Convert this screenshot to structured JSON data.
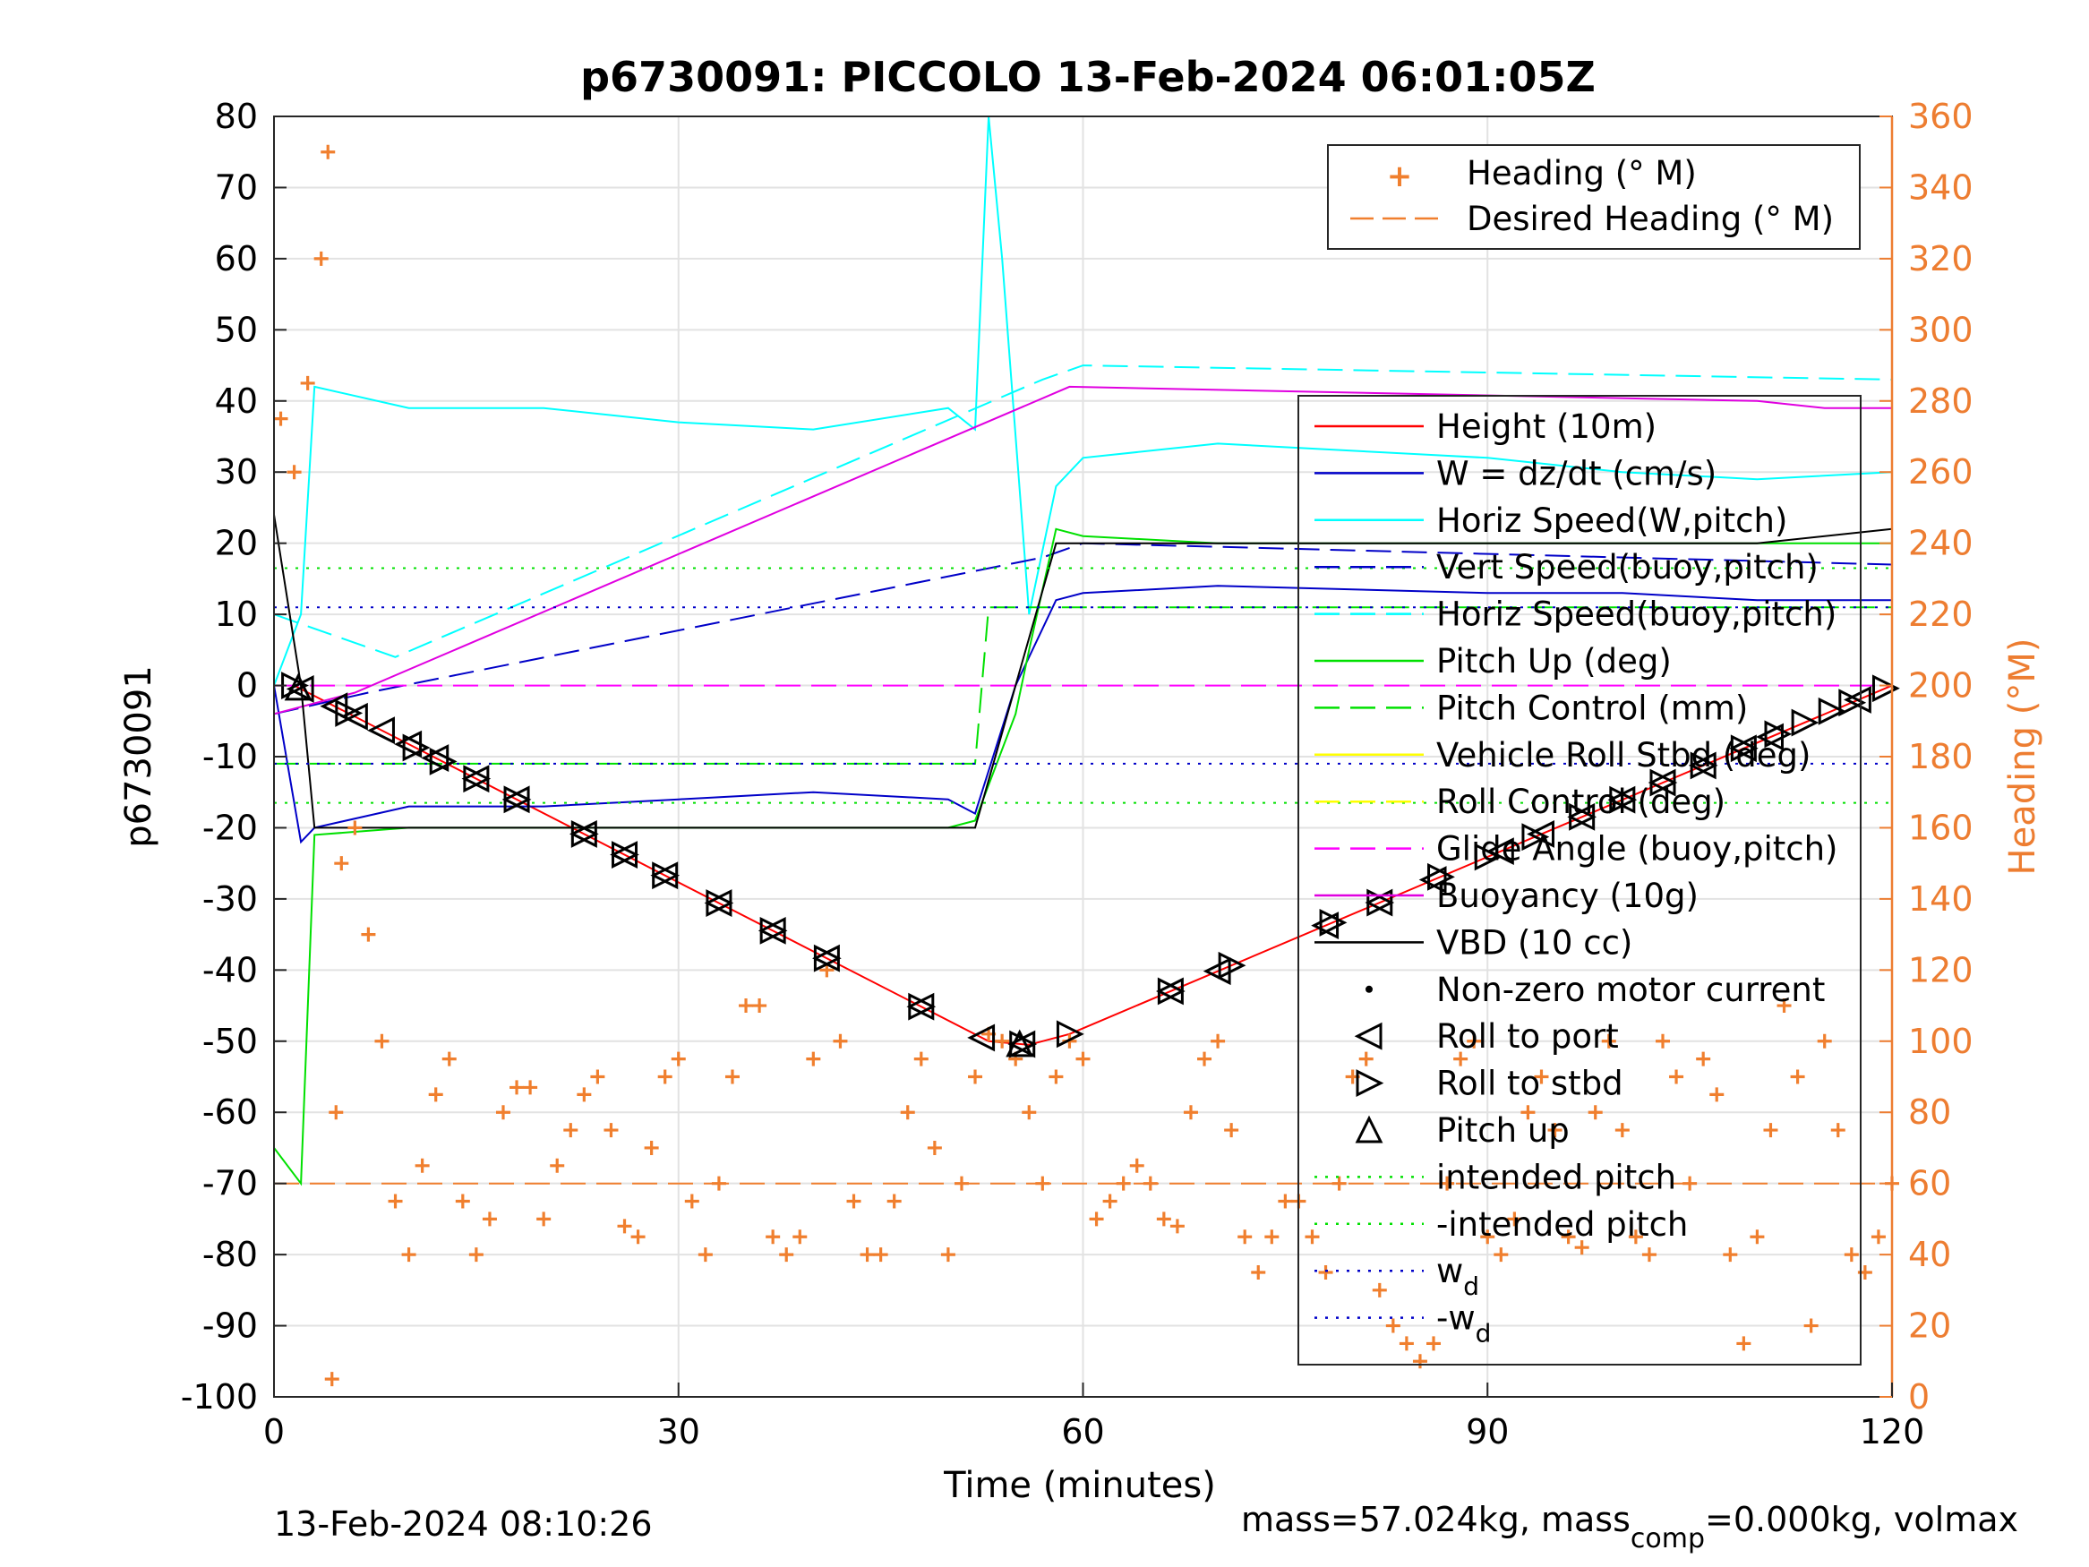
{
  "chart_data": {
    "type": "line",
    "title": "p6730091: PICCOLO 13-Feb-2024 06:01:05Z",
    "xlabel": "Time (minutes)",
    "ylabel_left": "p6730091",
    "ylabel_right": "Heading (°M)",
    "xlim": [
      0,
      120
    ],
    "ylim_left": [
      -100,
      80
    ],
    "ylim_right": [
      0,
      360
    ],
    "grid": true,
    "x_ticks": [
      "0",
      "30",
      "60",
      "90",
      "120"
    ],
    "x_tick_values": [
      0,
      30,
      60,
      90,
      120
    ],
    "y_ticks_left": [
      "80",
      "70",
      "60",
      "50",
      "40",
      "30",
      "20",
      "10",
      "0",
      "-10",
      "-20",
      "-30",
      "-40",
      "-50",
      "-60",
      "-70",
      "-80",
      "-90",
      "-100"
    ],
    "y_tick_values_left": [
      80,
      70,
      60,
      50,
      40,
      30,
      20,
      10,
      0,
      -10,
      -20,
      -30,
      -40,
      -50,
      -60,
      -70,
      -80,
      -90,
      -100
    ],
    "y_ticks_right": [
      "360",
      "340",
      "320",
      "300",
      "280",
      "260",
      "240",
      "220",
      "200",
      "180",
      "160",
      "140",
      "120",
      "100",
      "80",
      "60",
      "40",
      "20",
      "0"
    ],
    "y_tick_values_right": [
      360,
      340,
      320,
      300,
      280,
      260,
      240,
      220,
      200,
      180,
      160,
      140,
      120,
      100,
      80,
      60,
      40,
      20,
      0
    ],
    "colors": {
      "axis_right": "#ED7D31",
      "heading": "#F07F2E",
      "height": "#FF0000",
      "w": "#0000C8",
      "horiz_speed": "#00FFFF",
      "pitch": "#00E000",
      "roll": "#FFFF00",
      "glide": "#FF00FF",
      "buoyancy": "#E000E0",
      "vbd": "#000000",
      "grid": "#E2E2E2"
    },
    "legend_top_right": [
      "Heading (° M)",
      "Desired Heading (° M)"
    ],
    "legend_main": [
      "Height (10m)",
      "W = dz/dt (cm/s)",
      "Horiz Speed(W,pitch)",
      "Vert Speed(buoy,pitch)",
      "Horiz Speed(buoy,pitch)",
      "Pitch Up (deg)",
      "Pitch Control (mm)",
      "Vehicle Roll Stbd (deg)",
      "Roll Control (deg)",
      "Glide Angle (buoy,pitch)",
      "Buoyancy (10g)",
      "VBD (10 cc)",
      "Non-zero motor current",
      "Roll to port",
      "Roll to stbd",
      "Pitch up",
      "intended pitch",
      "-intended pitch",
      "w",
      "-w"
    ],
    "legend_subscripts": {
      "w": "d",
      "-w": "d"
    },
    "series": [
      {
        "name": "Height (10m)",
        "x": [
          1.5,
          53,
          56,
          59,
          120
        ],
        "y": [
          0,
          -50,
          -50.5,
          -49,
          0
        ]
      },
      {
        "name": "W = dz/dt (cm/s)",
        "x": [
          0,
          2,
          3,
          10,
          20,
          30,
          40,
          50,
          52,
          55,
          58,
          60,
          70,
          80,
          90,
          100,
          110,
          120
        ],
        "y": [
          0,
          -22,
          -20,
          -17,
          -17,
          -16,
          -15,
          -16,
          -18,
          0,
          12,
          13,
          14,
          13.5,
          13,
          13,
          12,
          12
        ]
      },
      {
        "name": "Horiz Speed(W,pitch)",
        "x": [
          0,
          2,
          3,
          10,
          20,
          30,
          40,
          50,
          52,
          53,
          54,
          56,
          58,
          60,
          70,
          80,
          90,
          100,
          110,
          120
        ],
        "y": [
          0,
          10,
          42,
          39,
          39,
          37,
          36,
          39,
          36,
          80,
          60,
          10,
          28,
          32,
          34,
          33,
          32,
          30,
          29,
          30
        ]
      },
      {
        "name": "Vert Speed(buoy,pitch)",
        "x": [
          0,
          7,
          57,
          60,
          120
        ],
        "y": [
          -4,
          -1,
          18,
          20,
          17
        ]
      },
      {
        "name": "Horiz Speed(buoy,pitch)",
        "x": [
          0,
          9,
          57,
          60,
          120
        ],
        "y": [
          10,
          4,
          43,
          45,
          43
        ]
      },
      {
        "name": "Pitch Up (deg)",
        "x": [
          0,
          2,
          3,
          10,
          20,
          30,
          40,
          50,
          52,
          55,
          56,
          58,
          60,
          70,
          80,
          90,
          100,
          110,
          120
        ],
        "y": [
          -65,
          -70,
          -21,
          -20,
          -20,
          -20,
          -20,
          -20,
          -19,
          -4,
          5,
          22,
          21,
          20,
          20,
          20,
          20,
          20,
          20
        ]
      },
      {
        "name": "Pitch Control (mm)",
        "x": [
          0,
          52,
          53,
          60,
          120
        ],
        "y": [
          -11,
          -11,
          11,
          11,
          11
        ]
      },
      {
        "name": "Glide Angle (buoy,pitch)",
        "x": [
          0,
          120
        ],
        "y": [
          0,
          0
        ]
      },
      {
        "name": "Buoyancy (10g)",
        "x": [
          0,
          6,
          59,
          110,
          115,
          120
        ],
        "y": [
          -4,
          -1,
          42,
          40,
          39,
          39
        ]
      },
      {
        "name": "VBD (10 cc)",
        "x": [
          0,
          2,
          3,
          5,
          52,
          58,
          59,
          110,
          120
        ],
        "y": [
          24,
          0,
          -20,
          -20,
          -20,
          20,
          20,
          20,
          22
        ]
      },
      {
        "name": "intended pitch",
        "x": [
          0,
          120
        ],
        "y": [
          16.5,
          16.5
        ]
      },
      {
        "name": "-intended pitch",
        "x": [
          0,
          120
        ],
        "y": [
          -16.5,
          -16.5
        ]
      },
      {
        "name": "w_d",
        "x": [
          0,
          120
        ],
        "y": [
          11,
          11
        ]
      },
      {
        "name": "-w_d",
        "x": [
          0,
          120
        ],
        "y": [
          -11,
          -11
        ]
      },
      {
        "name": "Desired Heading (° M)",
        "axis": "right",
        "x": [
          0,
          120
        ],
        "y": [
          60,
          60
        ]
      },
      {
        "name": "Heading (° M)",
        "axis": "right",
        "x": [
          0.5,
          1.5,
          2.5,
          3.5,
          4,
          4.3,
          4.6,
          5,
          6,
          7,
          8,
          9,
          10,
          11,
          12,
          13,
          14,
          15,
          16,
          17,
          18,
          19,
          20,
          21,
          22,
          23,
          24,
          25,
          26,
          27,
          28,
          29,
          30,
          31,
          32,
          33,
          34,
          35,
          36,
          37,
          38,
          39,
          40,
          41,
          42,
          43,
          44,
          45,
          46,
          47,
          48,
          49,
          50,
          51,
          52,
          53,
          54,
          55,
          56,
          57,
          58,
          59,
          60,
          61,
          62,
          63,
          64,
          65,
          66,
          67,
          68,
          69,
          70,
          71,
          72,
          73,
          74,
          75,
          76,
          77,
          78,
          79,
          80,
          81,
          82,
          83,
          84,
          85,
          86,
          87,
          88,
          89,
          90,
          91,
          92,
          93,
          94,
          95,
          96,
          97,
          98,
          99,
          100,
          101,
          102,
          103,
          104,
          105,
          106,
          107,
          108,
          109,
          110,
          111,
          112,
          113,
          114,
          115,
          116,
          117,
          118,
          119,
          120
        ],
        "y": [
          275,
          260,
          285,
          320,
          350,
          5,
          80,
          150,
          160,
          130,
          100,
          55,
          40,
          65,
          85,
          95,
          55,
          40,
          50,
          80,
          87,
          87,
          50,
          65,
          75,
          85,
          90,
          75,
          48,
          45,
          70,
          90,
          95,
          55,
          40,
          60,
          90,
          110,
          110,
          45,
          40,
          45,
          95,
          120,
          100,
          55,
          40,
          40,
          55,
          80,
          95,
          70,
          40,
          60,
          90,
          102,
          100,
          95,
          80,
          60,
          90,
          100,
          95,
          50,
          55,
          60,
          65,
          60,
          50,
          48,
          80,
          95,
          100,
          75,
          45,
          35,
          45,
          55,
          55,
          45,
          35,
          60,
          90,
          95,
          30,
          20,
          15,
          10,
          15,
          60,
          95,
          100,
          45,
          40,
          50,
          80,
          90,
          75,
          45,
          42,
          80,
          100,
          75,
          45,
          40,
          100,
          90,
          60,
          95,
          85,
          40,
          15,
          45,
          75,
          110,
          90,
          20,
          100,
          75,
          40,
          35,
          45,
          60
        ]
      }
    ],
    "markers": {
      "roll_to_port": {
        "name": "Roll to port",
        "x": [
          2,
          4.5,
          6,
          8,
          10,
          12,
          15,
          18,
          23,
          26,
          29,
          33,
          37,
          41,
          48,
          52.5,
          55.5,
          66.5,
          70,
          78,
          82,
          86,
          91,
          94,
          97,
          100,
          103,
          106,
          109,
          111,
          117.5
        ]
      },
      "roll_to_stbd": {
        "name": "Roll to stbd",
        "x": [
          1.5,
          5.5,
          10.5,
          12.5,
          15,
          18,
          23,
          26,
          29,
          33,
          37,
          41,
          48,
          55.5,
          59,
          66.5,
          71,
          78.5,
          82,
          86.5,
          90,
          93.5,
          97,
          100,
          103,
          106,
          109,
          111.5,
          113.5,
          115.5,
          117,
          119.5
        ]
      },
      "pitch_up": {
        "name": "Pitch up",
        "x": [
          1.8,
          55.3
        ]
      }
    }
  },
  "footer": {
    "timestamp": "13-Feb-2024 08:10:26",
    "mass_text": "mass=57.024kg, mass",
    "mass_sub": "comp",
    "mass_tail": "=0.000kg, volmax"
  }
}
